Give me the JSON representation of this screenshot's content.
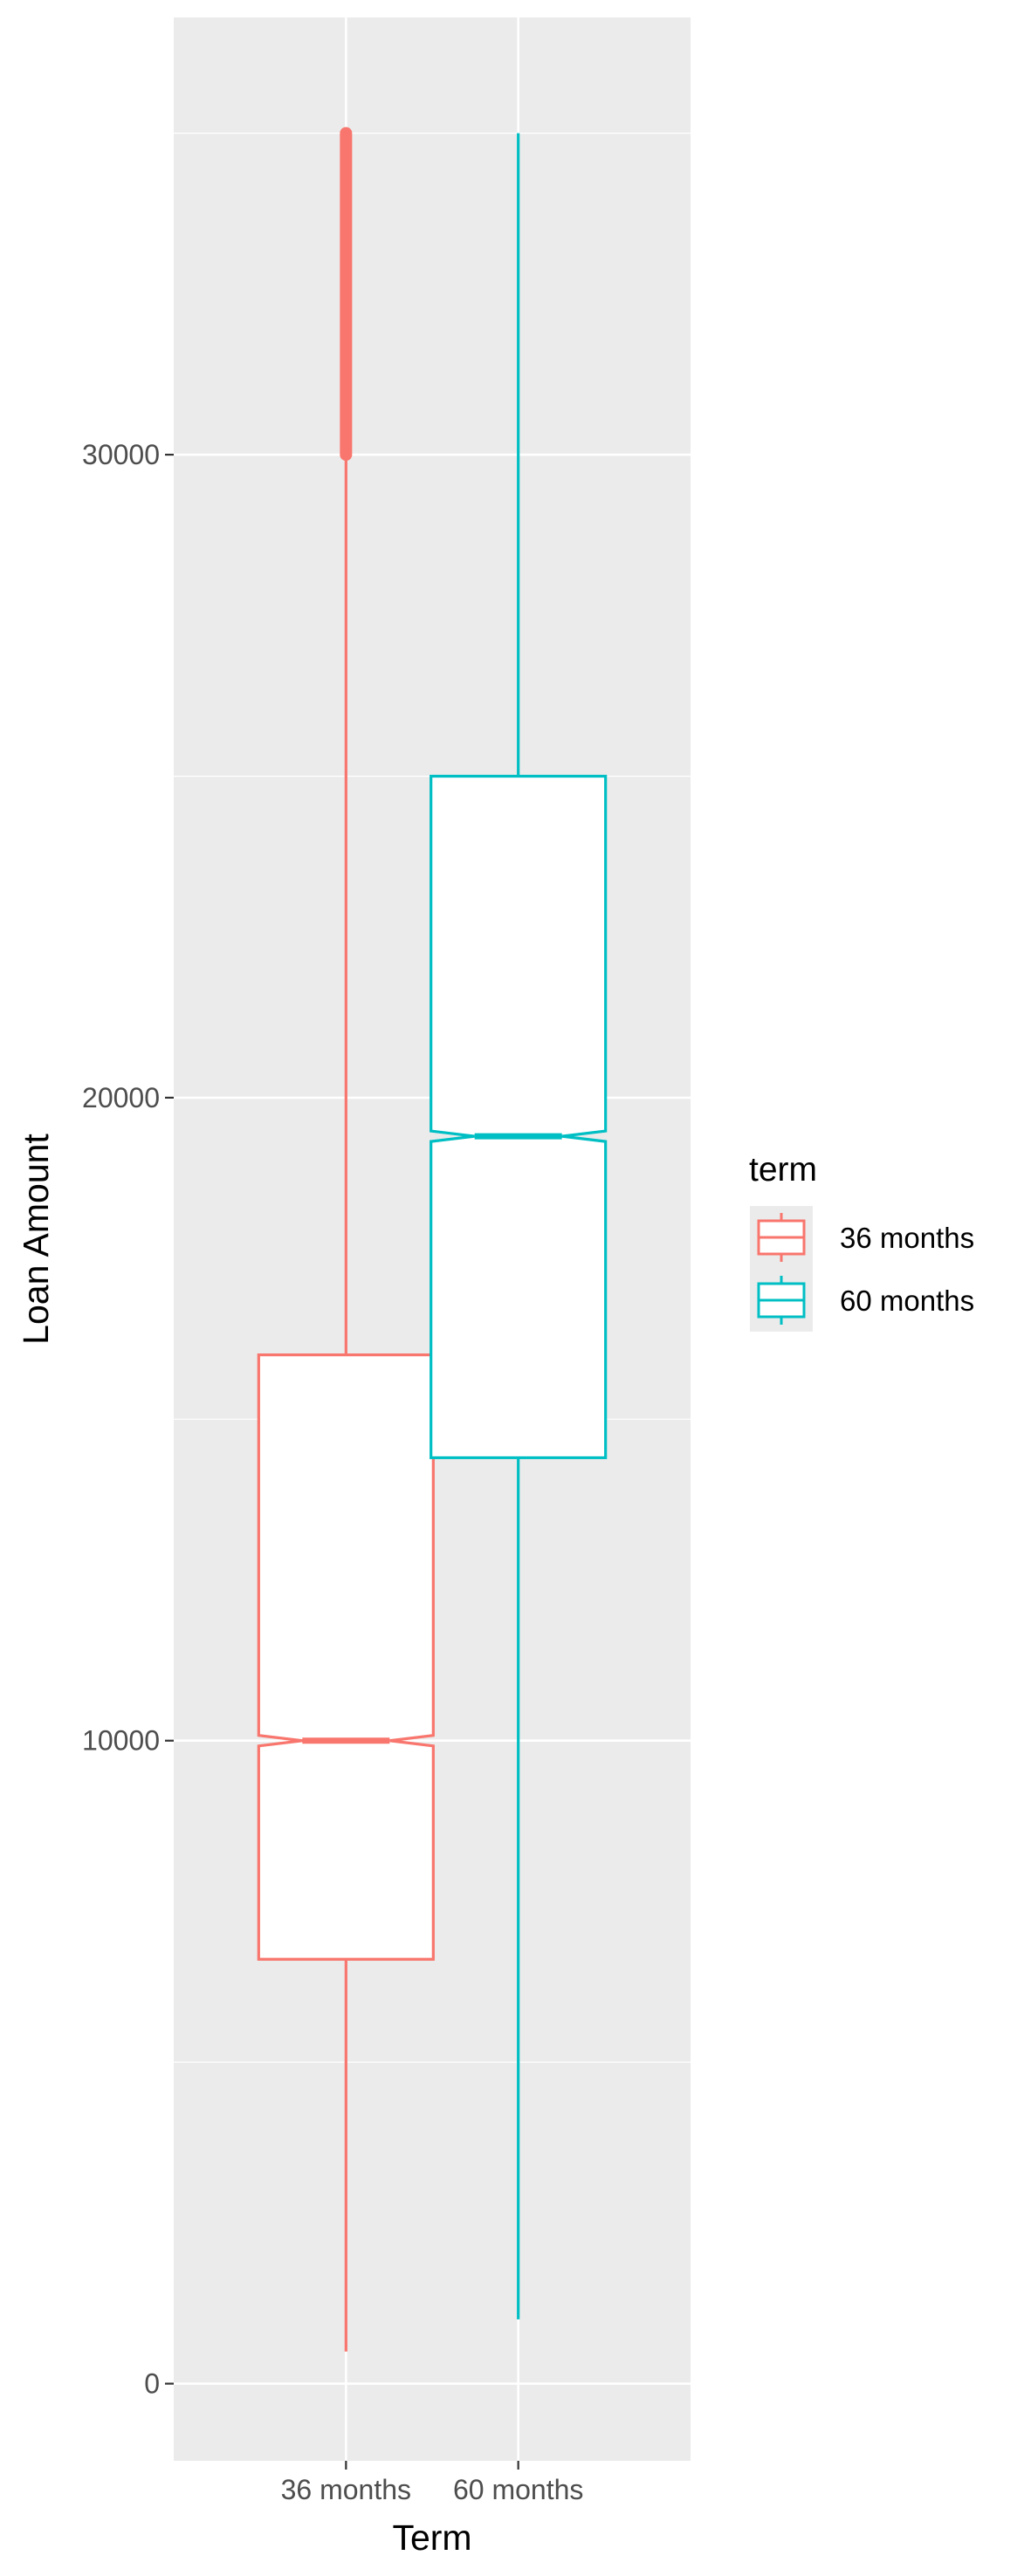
{
  "chart_data": {
    "type": "boxplot",
    "title": "",
    "xlabel": "Term",
    "ylabel": "Loan Amount",
    "categories": [
      "36 months",
      "60 months"
    ],
    "ylim": [
      -1200,
      36800
    ],
    "y_ticks": [
      0,
      10000,
      20000,
      30000
    ],
    "y_tick_labels": [
      "0",
      "10000",
      "20000",
      "30000"
    ],
    "grid": true,
    "notched": true,
    "series": [
      {
        "name": "36 months",
        "color": "#F8766D",
        "whisker_low": 500,
        "q1": 6600,
        "median": 10000,
        "q3": 16000,
        "whisker_high": 30000,
        "outlier_range": [
          30000,
          35000
        ]
      },
      {
        "name": "60 months",
        "color": "#00BFC4",
        "whisker_low": 1000,
        "q1": 14400,
        "median": 19400,
        "q3": 25000,
        "whisker_high": 35000
      }
    ],
    "legend": {
      "title": "term",
      "position": "right",
      "items": [
        "36 months",
        "60 months"
      ]
    }
  }
}
